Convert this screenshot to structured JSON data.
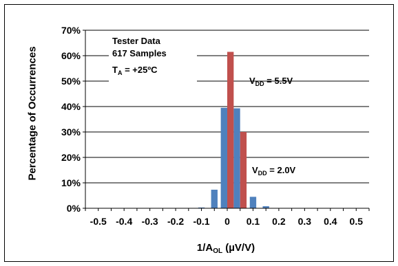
{
  "chart_data": {
    "type": "bar",
    "ylabel": "Percentage of Occurrences",
    "xlabel_main": "1/A",
    "xlabel_sub": "OL",
    "xlabel_unit": " (µV/V)",
    "x_tick_labels": [
      "-0.5",
      "-0.4",
      "-0.3",
      "-0.2",
      "-0.1",
      "0",
      "0.1",
      "0.2",
      "0.3",
      "0.4",
      "0.5"
    ],
    "x_ticks": [
      -0.5,
      -0.4,
      -0.3,
      -0.2,
      -0.1,
      0,
      0.1,
      0.2,
      0.3,
      0.4,
      0.5
    ],
    "xlim": [
      -0.55,
      0.55
    ],
    "ylim": [
      0,
      70
    ],
    "y_tick_labels": [
      "0%",
      "10%",
      "20%",
      "30%",
      "40%",
      "50%",
      "60%",
      "70%"
    ],
    "y_ticks": [
      0,
      10,
      20,
      30,
      40,
      50,
      60,
      70
    ],
    "grid": "horizontal",
    "bin_width": 0.05,
    "series": [
      {
        "color": "#4f81bd",
        "x": [
          -0.1,
          -0.05,
          0,
          0.05,
          0.1,
          0.15
        ],
        "values": [
          0.3,
          7.3,
          39.5,
          39.3,
          4.5,
          0.8
        ]
      },
      {
        "color": "#c0504d",
        "x": [
          0,
          0.05
        ],
        "values": [
          61.5,
          30.0
        ]
      }
    ],
    "annotations": {
      "tester_data": "Tester Data",
      "samples": "617 Samples",
      "ta_main": "T",
      "ta_sub": "A",
      "ta_rest": " = +25ºC",
      "vdd_hi_main": "V",
      "vdd_hi_sub": "DD",
      "vdd_hi_rest": " = 5.5V",
      "vdd_lo_main": "V",
      "vdd_lo_sub": "DD",
      "vdd_lo_rest": " = 2.0V"
    }
  }
}
